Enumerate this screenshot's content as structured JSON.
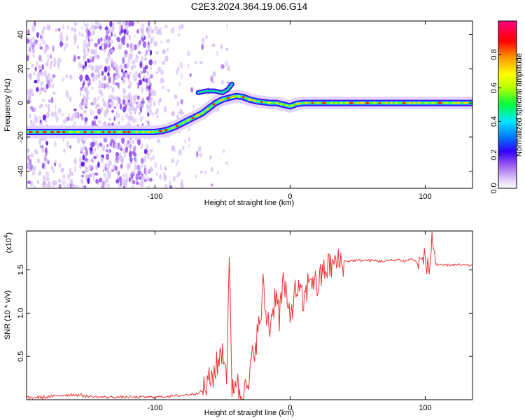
{
  "title": "C2E3.2024.364.19.06.G14",
  "chart_data": [
    {
      "type": "heatmap",
      "title": "C2E3.2024.364.19.06.G14",
      "xlabel": "Height of straight line (km)",
      "ylabel": "Frequency (Hz)",
      "xlim": [
        -195,
        135
      ],
      "ylim": [
        -50,
        48
      ],
      "xticks": [
        -100,
        0,
        100
      ],
      "yticks": [
        -40,
        -20,
        0,
        20,
        40
      ],
      "colorbar": {
        "label": "Normalized spectral amplitude",
        "range": [
          0,
          1
        ],
        "ticks": [
          0.0,
          0.2,
          0.4,
          0.6,
          0.8
        ],
        "tick_labels": [
          "0.0",
          "0.2",
          "0.4",
          "0.6",
          "0.8"
        ],
        "colors": [
          "#ffffff",
          "#d9c2f7",
          "#9b59f0",
          "#3300ff",
          "#0060ff",
          "#00e5ff",
          "#00ff40",
          "#b5ff00",
          "#ffff00",
          "#ff9900",
          "#ff0000",
          "#ff0080"
        ]
      },
      "ridge": {
        "description_free": true,
        "x": [
          -195,
          -150,
          -120,
          -100,
          -95,
          -90,
          -85,
          -80,
          -75,
          -70,
          -65,
          -60,
          -55,
          -50,
          -45,
          -40,
          -35,
          -30,
          -25,
          -20,
          -15,
          -10,
          -5,
          0,
          5,
          10,
          20,
          40,
          60,
          80,
          100,
          120,
          135
        ],
        "y": [
          -17,
          -17,
          -17,
          -17,
          -16.5,
          -15.5,
          -14,
          -12,
          -10,
          -8,
          -6,
          -3,
          0,
          2,
          3,
          4,
          3.5,
          2,
          1,
          0.5,
          0,
          0,
          -1,
          -2,
          -0.5,
          0,
          0,
          0,
          0,
          0,
          0,
          0,
          0
        ]
      }
    },
    {
      "type": "line",
      "xlabel": "Height of straight line (km)",
      "ylabel": "SNR (10 * v/v)",
      "y_multiplier_label": "(x10",
      "y_multiplier_exp": "4",
      "xlim": [
        -195,
        135
      ],
      "ylim": [
        0,
        1.95
      ],
      "xticks": [
        -100,
        0,
        100
      ],
      "yticks": [
        0.5,
        1.0,
        1.5
      ],
      "ytick_labels": [
        "0.5",
        "1.0",
        "1.5"
      ],
      "series": [
        {
          "color": "#ee3333",
          "x": [
            -195,
            -180,
            -170,
            -160,
            -150,
            -140,
            -120,
            -100,
            -90,
            -80,
            -70,
            -65,
            -60,
            -55,
            -50,
            -47,
            -45,
            -43,
            -40,
            -38,
            -35,
            -32,
            -30,
            -28,
            -25,
            -22,
            -20,
            -18,
            -15,
            -12,
            -10,
            -8,
            -5,
            -2,
            0,
            5,
            10,
            15,
            20,
            25,
            30,
            35,
            40,
            50,
            60,
            70,
            80,
            85,
            90,
            95,
            100,
            103,
            105,
            108,
            110,
            120,
            135
          ],
          "y": [
            0.02,
            0.03,
            0.05,
            0.06,
            0.04,
            0.03,
            0.03,
            0.03,
            0.04,
            0.05,
            0.07,
            0.1,
            0.2,
            0.35,
            0.6,
            0.3,
            1.55,
            0.15,
            0.25,
            0.1,
            0.08,
            0.1,
            0.2,
            0.5,
            0.7,
            0.9,
            1.3,
            1.0,
            0.85,
            1.1,
            1.3,
            0.95,
            1.4,
            1.05,
            1.0,
            1.3,
            1.1,
            1.45,
            1.3,
            1.5,
            1.55,
            1.58,
            1.6,
            1.61,
            1.61,
            1.6,
            1.62,
            1.6,
            1.63,
            1.57,
            1.65,
            1.45,
            1.9,
            1.58,
            1.55,
            1.56,
            1.55
          ]
        }
      ]
    }
  ]
}
